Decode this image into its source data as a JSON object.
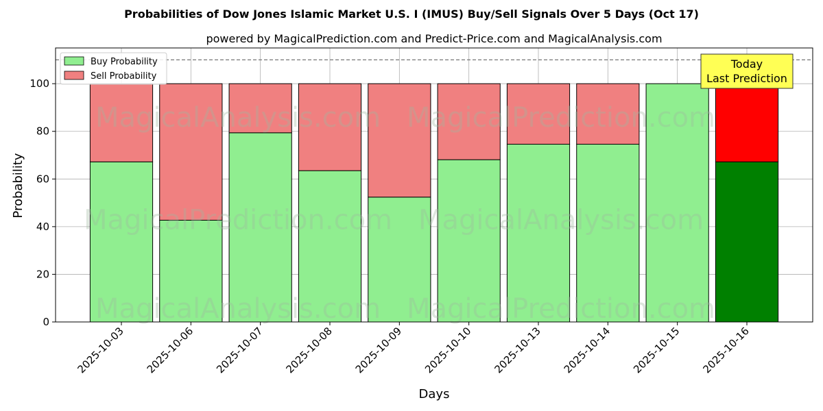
{
  "chart_data": {
    "type": "bar",
    "stacked": true,
    "title": "Probabilities of Dow Jones Islamic Market U.S. I (IMUS) Buy/Sell Signals Over 5 Days (Oct 17)",
    "subtitle": "powered by MagicalPrediction.com and Predict-Price.com and MagicalAnalysis.com",
    "xlabel": "Days",
    "ylabel": "Probability",
    "ylim": [
      0,
      115
    ],
    "yticks": [
      0,
      20,
      40,
      60,
      80,
      100
    ],
    "reference_line": 110,
    "grid": true,
    "legend_position": "top-left",
    "categories": [
      "2025-10-03",
      "2025-10-06",
      "2025-10-07",
      "2025-10-08",
      "2025-10-09",
      "2025-10-10",
      "2025-10-13",
      "2025-10-14",
      "2025-10-15",
      "2025-10-16"
    ],
    "series": [
      {
        "name": "Buy Probability",
        "values": [
          67.2,
          42.7,
          79.4,
          63.5,
          52.4,
          68.1,
          74.6,
          74.6,
          100,
          67.2
        ],
        "color": "#90ee90",
        "highlight_color": "#008000"
      },
      {
        "name": "Sell Probability",
        "values": [
          32.8,
          57.3,
          20.6,
          36.5,
          47.6,
          31.9,
          25.4,
          25.4,
          0,
          32.8
        ],
        "color": "#f08080",
        "highlight_color": "#ff0000"
      }
    ],
    "highlight_index": 9,
    "annotation": {
      "line1": "Today",
      "line2": "Last Prediction",
      "color": "#ffff55"
    },
    "watermarks": [
      "MagicalAnalysis.com",
      "MagicalPrediction.com"
    ]
  }
}
